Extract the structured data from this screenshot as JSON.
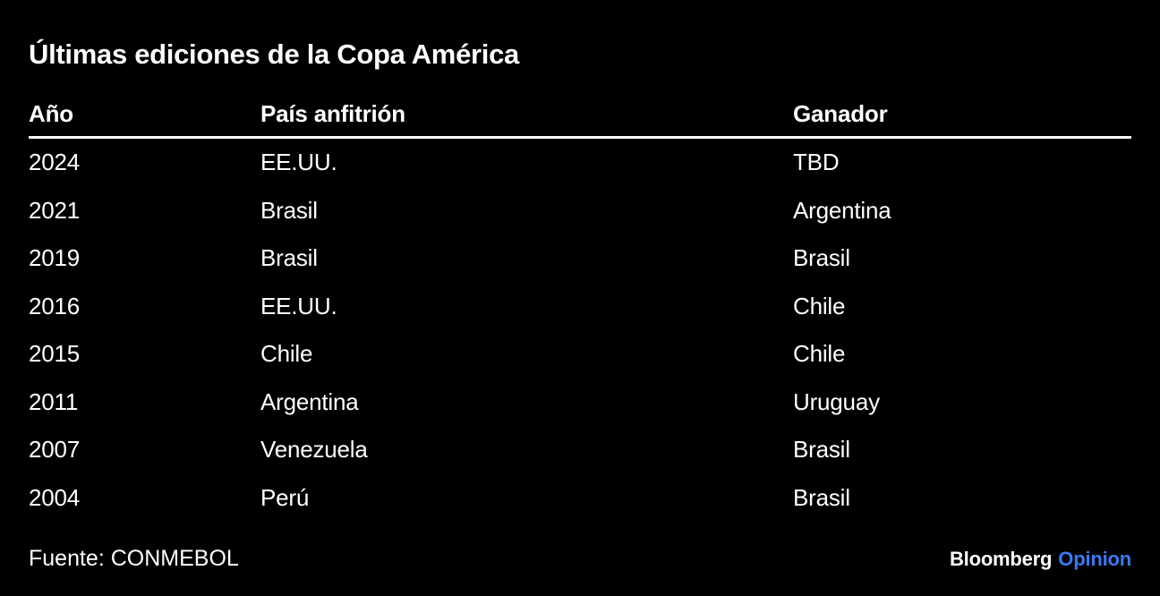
{
  "title": "Últimas ediciones de la Copa América",
  "chart_data": {
    "type": "table",
    "title": "Últimas ediciones de la Copa América",
    "columns": [
      "Año",
      "País anfitrión",
      "Ganador"
    ],
    "rows": [
      [
        "2024",
        "EE.UU.",
        "TBD"
      ],
      [
        "2021",
        "Brasil",
        "Argentina"
      ],
      [
        "2019",
        "Brasil",
        "Brasil"
      ],
      [
        "2016",
        "EE.UU.",
        "Chile"
      ],
      [
        "2015",
        "Chile",
        "Chile"
      ],
      [
        "2011",
        "Argentina",
        "Uruguay"
      ],
      [
        "2007",
        "Venezuela",
        "Brasil"
      ],
      [
        "2004",
        "Perú",
        "Brasil"
      ]
    ],
    "source": "Fuente: CONMEBOL"
  },
  "source": "Fuente: CONMEBOL",
  "logo": {
    "brand": "Bloomberg",
    "suffix": "Opinion"
  },
  "colors": {
    "background": "#000000",
    "text": "#ffffff",
    "rule": "#ffffff",
    "opinion_blue": "#3A7BF2"
  }
}
